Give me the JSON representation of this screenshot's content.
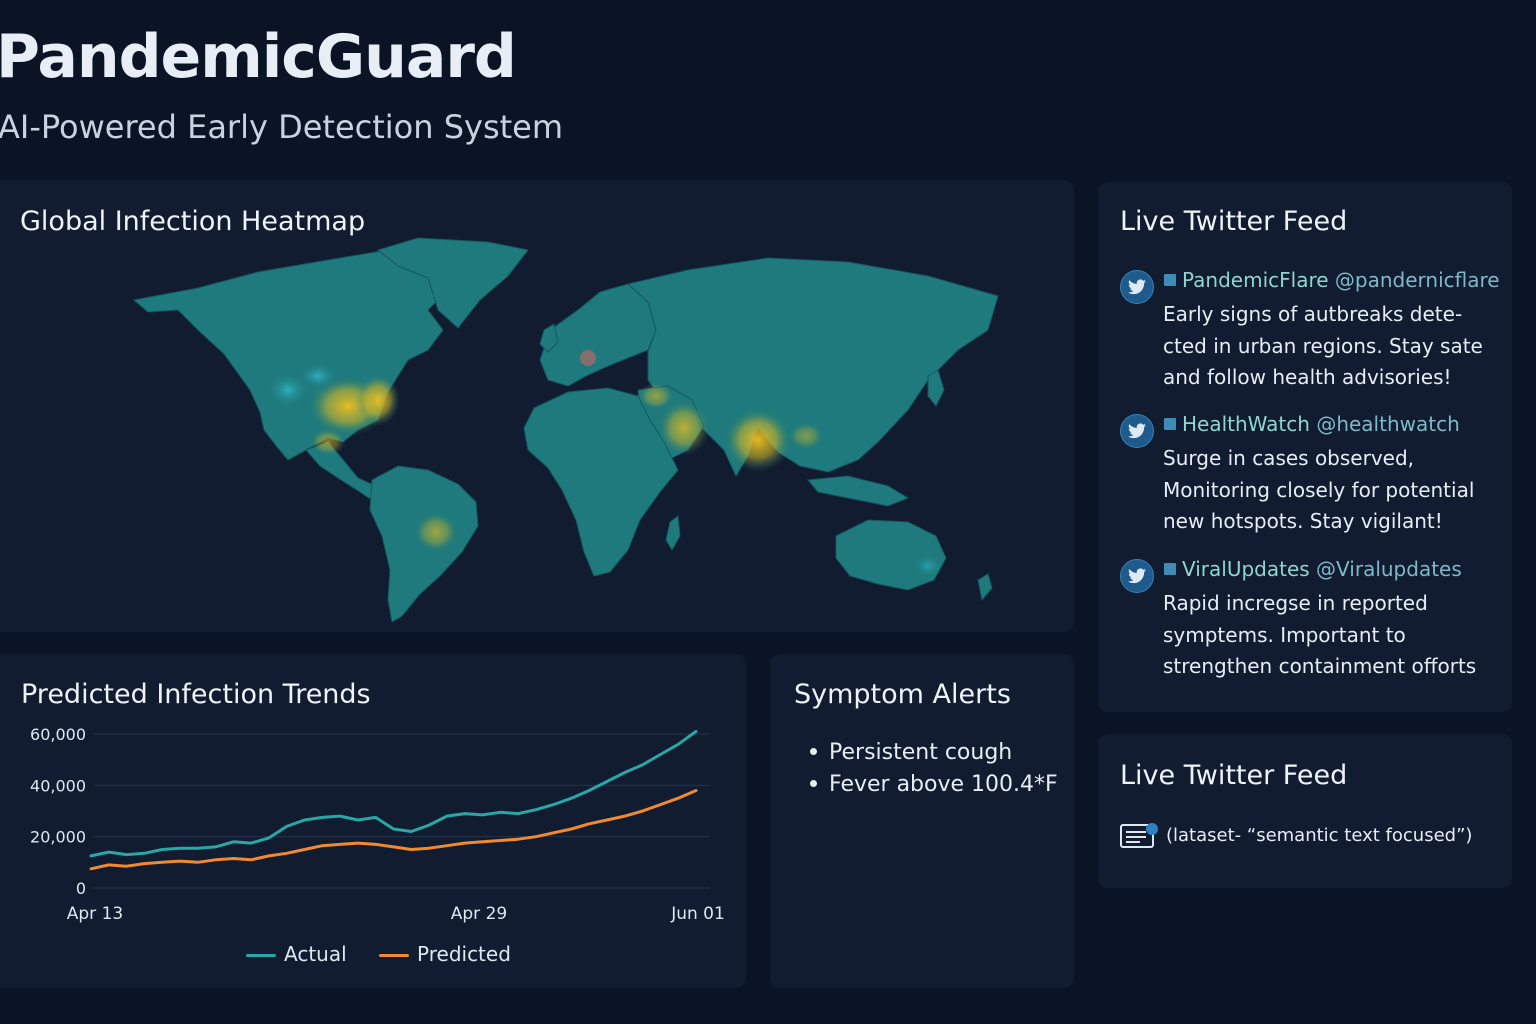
{
  "app": {
    "title": "PandemicGuard",
    "subtitle": "AI-Powered Early Detection System"
  },
  "heatmap": {
    "title": "Global Infection Heatmap",
    "colors": {
      "land": "#1d7b7d",
      "hotspot": "#e8b521",
      "warm": "#9bb73a"
    }
  },
  "trends": {
    "title": "Predicted Infection Trends"
  },
  "symptoms": {
    "title": "Symptom Alerts",
    "items": [
      "Persistent cough",
      "Fever above 100.4*F"
    ]
  },
  "feed": {
    "title": "Live Twitter Feed",
    "tweets": [
      {
        "icon": "twitter-bird-icon",
        "name": "PandemicFlare",
        "handle": "@pandernicflare",
        "text": "Early signs of autbreaks dete-cted in urban regions. Stay sate and follow health advisories!"
      },
      {
        "icon": "twitter-bird-icon",
        "name": "HealthWatch",
        "handle": "@healthwatch",
        "text": "Surge in cases observed, Monitoring closely for potential new hotspots. Stay vigilant!"
      },
      {
        "icon": "twitter-bird-icon",
        "name": "ViralUpdates",
        "handle": "@Viralupdates",
        "text": "Rapid incregse in reported symptems. Important to strengthen containment offorts"
      }
    ]
  },
  "feed2": {
    "title": "Live Twitter Feed",
    "line": "(lataset- “semantic text focused”)"
  },
  "chart_data": {
    "type": "line",
    "title": "Predicted Infection Trends",
    "x_ticks": [
      "Apr 13",
      "Apr 29",
      "Jun 01"
    ],
    "y_ticks": [
      "60,000",
      "40,000",
      "20,000",
      "0"
    ],
    "ylim": [
      0,
      60000
    ],
    "grid": true,
    "legend_position": "bottom",
    "colors": {
      "Actual": "#2aa6a4",
      "Predicted": "#f08a2c"
    },
    "series": [
      {
        "name": "Actual",
        "values": [
          12500,
          14000,
          13000,
          13500,
          15000,
          15500,
          15500,
          16000,
          18000,
          17500,
          19500,
          24000,
          26500,
          27500,
          28000,
          26500,
          27500,
          23000,
          22000,
          24500,
          28000,
          29000,
          28500,
          29500,
          29000,
          30500,
          32500,
          35000,
          38000,
          41500,
          45000,
          48000,
          52000,
          56000,
          61000
        ]
      },
      {
        "name": "Predicted",
        "values": [
          7500,
          9000,
          8500,
          9500,
          10000,
          10500,
          10000,
          11000,
          11500,
          11000,
          12500,
          13500,
          15000,
          16500,
          17000,
          17500,
          17000,
          16000,
          15000,
          15500,
          16500,
          17500,
          18000,
          18500,
          19000,
          20000,
          21500,
          23000,
          25000,
          26500,
          28000,
          30000,
          32500,
          35000,
          38000
        ]
      }
    ]
  }
}
